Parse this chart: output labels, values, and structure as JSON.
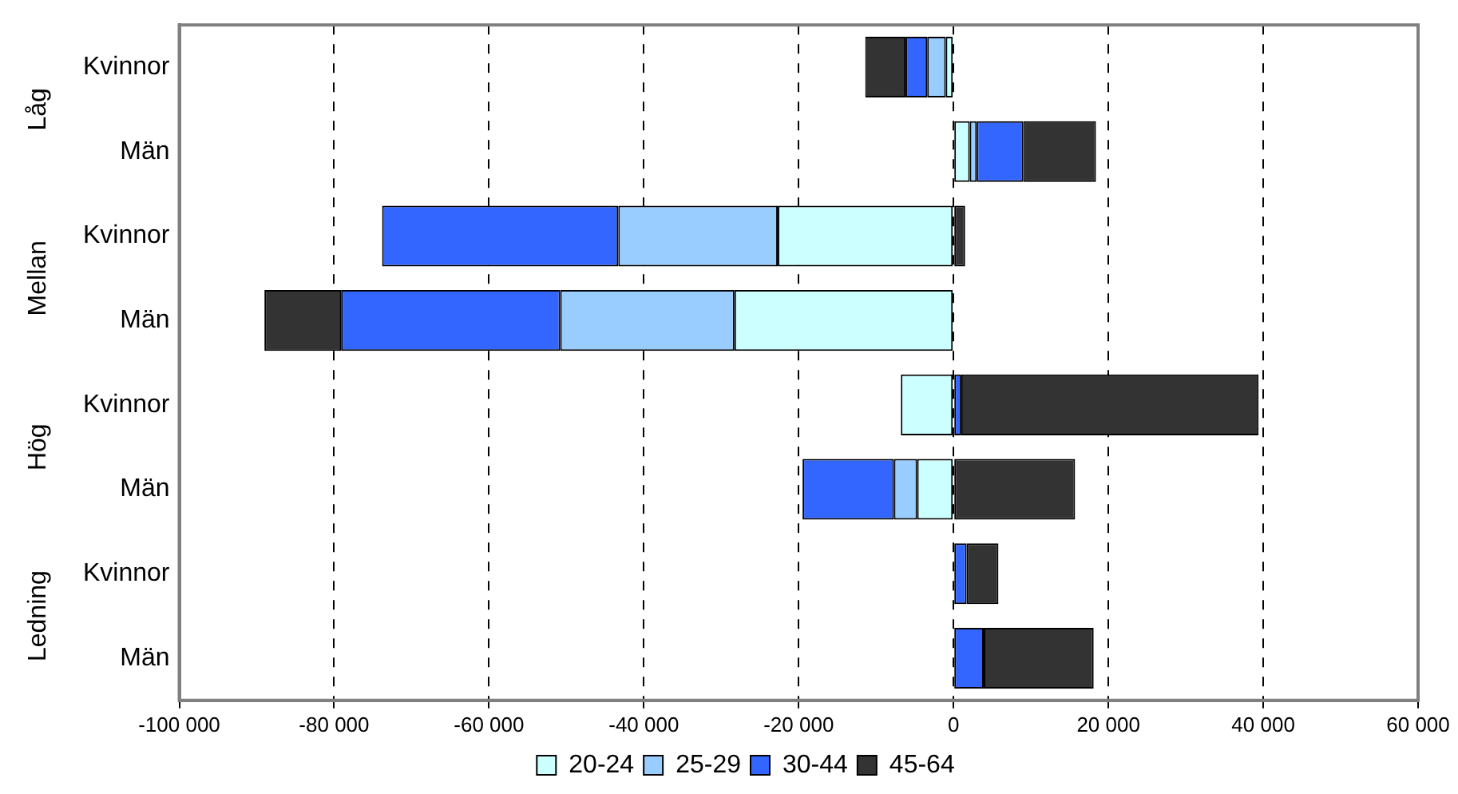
{
  "chart_data": {
    "type": "bar",
    "orientation": "horizontal",
    "stacked": true,
    "categories": [
      "Kvinnor",
      "Män",
      "Kvinnor",
      "Män",
      "Kvinnor",
      "Män",
      "Kvinnor",
      "Män"
    ],
    "series": [
      {
        "name": "20-24",
        "color": "#ccffff",
        "values": [
          -1000,
          2100,
          -22700,
          -28300,
          -6800,
          -4700,
          null,
          null
        ]
      },
      {
        "name": "25-29",
        "color": "#99ccff",
        "values": [
          -2400,
          900,
          -20600,
          -22500,
          null,
          -3000,
          null,
          null
        ]
      },
      {
        "name": "30-44",
        "color": "#3366ff",
        "values": [
          -2800,
          6000,
          -30500,
          -28300,
          1000,
          -11800,
          1700,
          3900
        ]
      },
      {
        "name": "45-64",
        "color": "#333333",
        "values": [
          -5200,
          9400,
          1500,
          -9900,
          38400,
          15700,
          4100,
          14200
        ]
      }
    ],
    "xlim": [
      -100000,
      60000
    ],
    "xticks": [
      {
        "value": -100000,
        "label": "-100 000"
      },
      {
        "value": -80000,
        "label": "-80 000"
      },
      {
        "value": -60000,
        "label": "-60 000"
      },
      {
        "value": -40000,
        "label": "-40 000"
      },
      {
        "value": -20000,
        "label": "-20 000"
      },
      0,
      {
        "value": 20000,
        "label": "20 000"
      },
      {
        "value": 40000,
        "label": "40 000"
      },
      {
        "value": 60000,
        "label": "60 000"
      }
    ],
    "annotations": [
      "Låg",
      "Mellan",
      "Hög",
      "Ledning"
    ],
    "grid": "x",
    "legend": "bottom"
  }
}
